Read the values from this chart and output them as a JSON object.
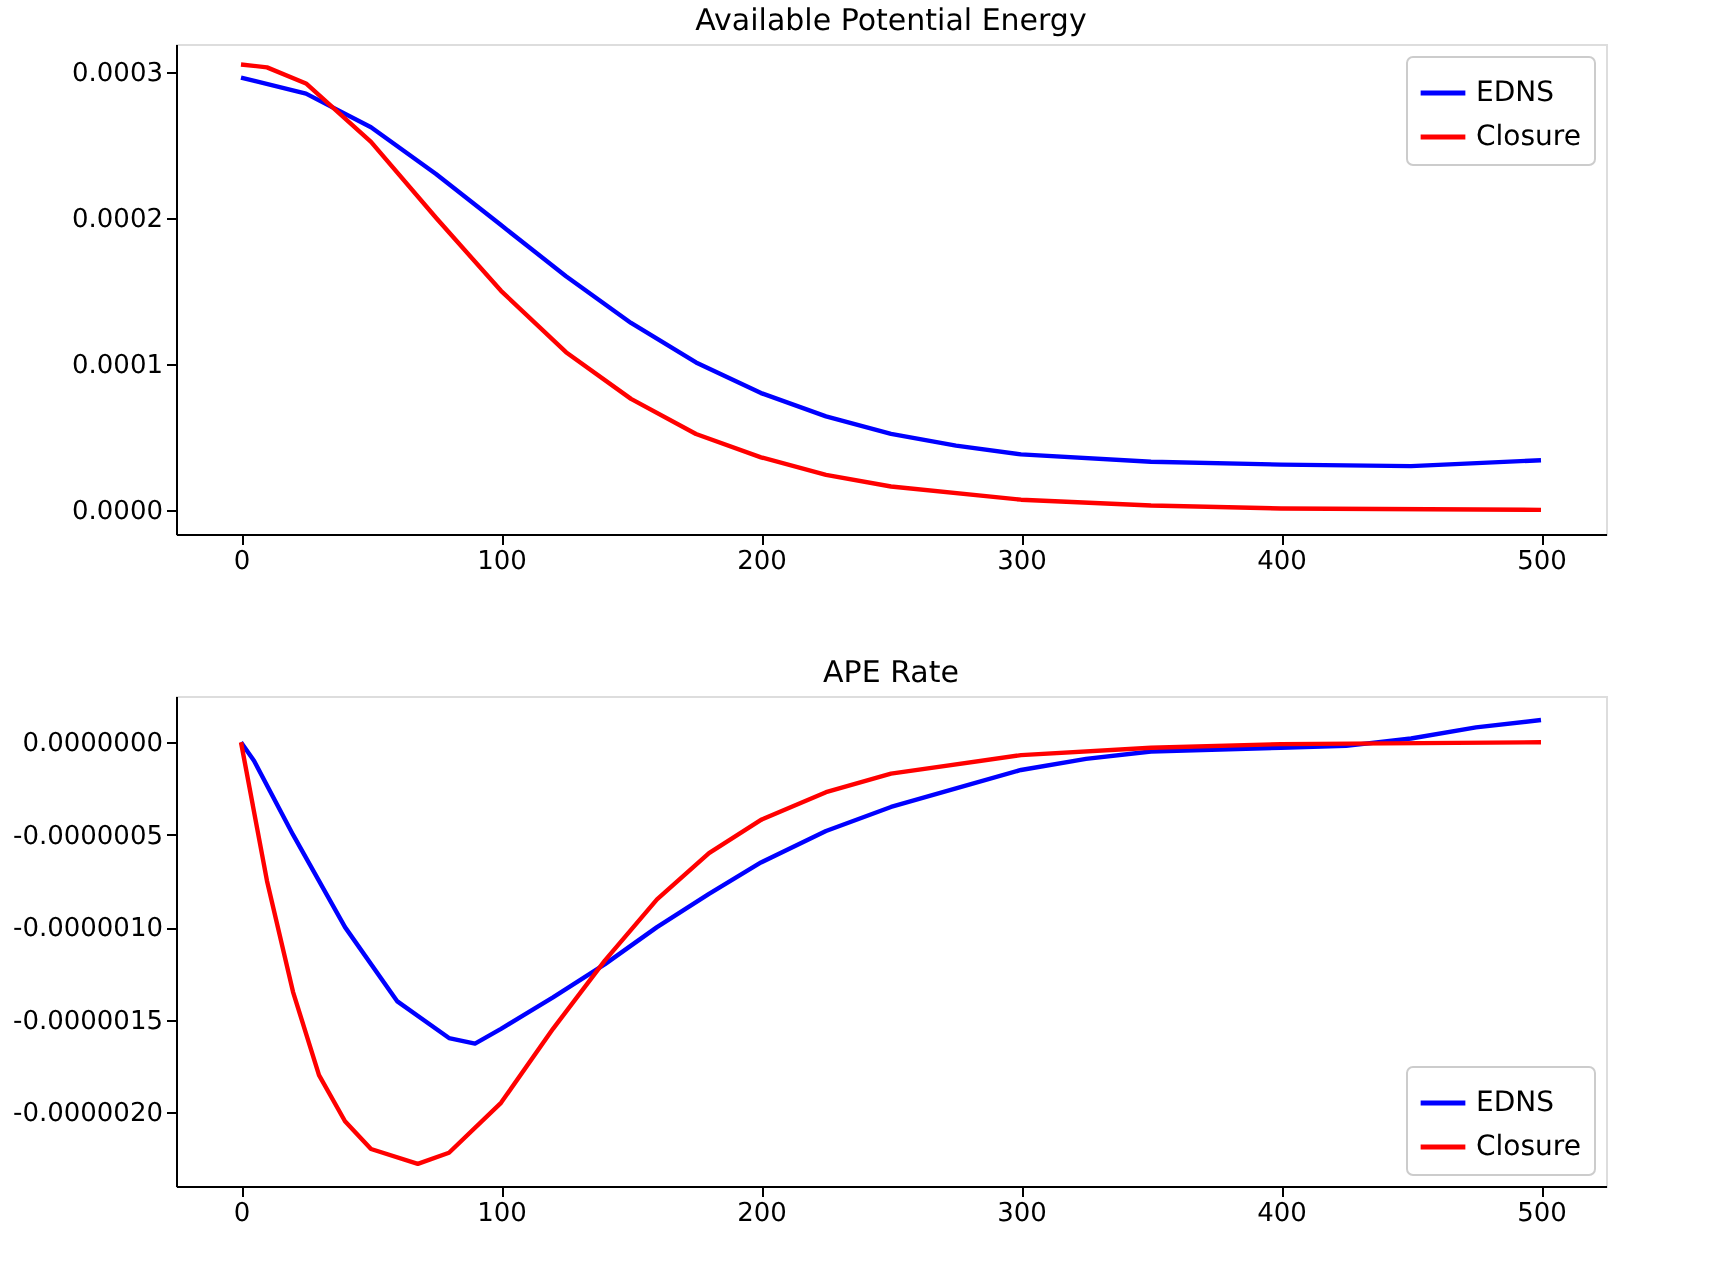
{
  "chart_data": [
    {
      "type": "line",
      "title": "Available Potential Energy",
      "xlim": [
        -25,
        525
      ],
      "xticks": [
        0,
        100,
        200,
        300,
        400,
        500
      ],
      "ylim": [
        -1.65e-05,
        0.000319
      ],
      "yticks": [
        {
          "value": 0,
          "label": "0.0000"
        },
        {
          "value": 0.0001,
          "label": "0.0001"
        },
        {
          "value": 0.0002,
          "label": "0.0002"
        },
        {
          "value": 0.0003,
          "label": "0.0003"
        }
      ],
      "legend": "top right",
      "line_style": "solid",
      "series": [
        {
          "name": "EDNS",
          "color": "#0000ff",
          "x": [
            0,
            25,
            50,
            75,
            100,
            125,
            150,
            175,
            200,
            225,
            250,
            275,
            300,
            350,
            400,
            450,
            500
          ],
          "values": [
            0.000296,
            0.000285,
            0.000262,
            0.00023,
            0.000195,
            0.00016,
            0.000128,
            0.000101,
            8e-05,
            6.4e-05,
            5.2e-05,
            4.4e-05,
            3.8e-05,
            3.3e-05,
            3.1e-05,
            3e-05,
            3.4e-05
          ]
        },
        {
          "name": "Closure",
          "color": "#ff0000",
          "x": [
            0,
            10,
            25,
            50,
            75,
            100,
            125,
            150,
            175,
            200,
            225,
            250,
            300,
            350,
            400,
            500
          ],
          "values": [
            0.000305,
            0.000303,
            0.000292,
            0.000252,
            0.0002,
            0.00015,
            0.000108,
            7.6e-05,
            5.2e-05,
            3.6e-05,
            2.4e-05,
            1.6e-05,
            7e-06,
            3e-06,
            1e-06,
            0
          ]
        }
      ]
    },
    {
      "type": "line",
      "title": "APE Rate",
      "xlim": [
        -25,
        525
      ],
      "xticks": [
        0,
        100,
        200,
        300,
        400,
        500
      ],
      "ylim": [
        -2.4e-06,
        2.5e-07
      ],
      "yticks": [
        {
          "value": -2e-06,
          "label": "-0.0000020"
        },
        {
          "value": -1.5e-06,
          "label": "-0.0000015"
        },
        {
          "value": -1e-06,
          "label": "-0.0000010"
        },
        {
          "value": -5e-07,
          "label": "-0.0000005"
        },
        {
          "value": 0,
          "label": "0.0000000"
        }
      ],
      "legend": "bottom right",
      "line_style": "solid",
      "series": [
        {
          "name": "EDNS",
          "color": "#0000ff",
          "x": [
            0,
            5,
            20,
            40,
            60,
            80,
            90,
            100,
            120,
            140,
            160,
            180,
            200,
            225,
            250,
            275,
            300,
            325,
            350,
            400,
            425,
            450,
            475,
            500
          ],
          "values": [
            0,
            -1e-07,
            -5e-07,
            -1e-06,
            -1.4e-06,
            -1.6e-06,
            -1.63e-06,
            -1.55e-06,
            -1.38e-06,
            -1.2e-06,
            -1e-06,
            -8.2e-07,
            -6.5e-07,
            -4.8e-07,
            -3.5e-07,
            -2.5e-07,
            -1.5e-07,
            -9e-08,
            -5e-08,
            -3e-08,
            -2e-08,
            2e-08,
            8e-08,
            1.2e-07
          ]
        },
        {
          "name": "Closure",
          "color": "#ff0000",
          "x": [
            0,
            10,
            20,
            30,
            40,
            50,
            68,
            80,
            100,
            120,
            140,
            160,
            180,
            200,
            225,
            250,
            300,
            350,
            400,
            500
          ],
          "values": [
            0,
            -7.5e-07,
            -1.35e-06,
            -1.8e-06,
            -2.05e-06,
            -2.2e-06,
            -2.28e-06,
            -2.22e-06,
            -1.95e-06,
            -1.55e-06,
            -1.18e-06,
            -8.5e-07,
            -6e-07,
            -4.2e-07,
            -2.7e-07,
            -1.7e-07,
            -7e-08,
            -3e-08,
            -1e-08,
            0
          ]
        }
      ]
    }
  ]
}
